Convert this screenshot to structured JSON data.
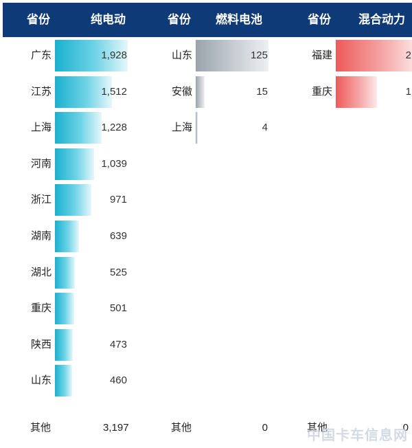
{
  "headers": {
    "prov1": "省份",
    "ev": "纯电动",
    "prov2": "省份",
    "fc": "燃料电池",
    "prov3": "省份",
    "hy": "混合动力"
  },
  "chart_data": [
    {
      "type": "bar",
      "series": [
        {
          "name": "纯电动",
          "categories": [
            "广东",
            "江苏",
            "上海",
            "河南",
            "浙江",
            "湖南",
            "湖北",
            "重庆",
            "陕西",
            "山东"
          ],
          "values": [
            1928,
            1512,
            1228,
            1039,
            971,
            639,
            525,
            501,
            473,
            460
          ],
          "labels": [
            "1,928",
            "1,512",
            "1,228",
            "1,039",
            "971",
            "639",
            "525",
            "501",
            "473",
            "460"
          ]
        }
      ],
      "other": {
        "label": "其他",
        "value": "3,197"
      }
    },
    {
      "type": "bar",
      "series": [
        {
          "name": "燃料电池",
          "categories": [
            "山东",
            "安徽",
            "上海"
          ],
          "values": [
            125,
            15,
            4
          ],
          "labels": [
            "125",
            "15",
            "4"
          ]
        }
      ],
      "other": {
        "label": "其他",
        "value": "0"
      }
    },
    {
      "type": "bar",
      "series": [
        {
          "name": "混合动力",
          "categories": [
            "福建",
            "重庆"
          ],
          "values": [
            2,
            1
          ],
          "labels": [
            "2",
            "1"
          ]
        }
      ],
      "other": {
        "label": "其他",
        "value": "0"
      }
    }
  ],
  "colors": {
    "header": "#0e3a78",
    "ev": "#1ab0cf",
    "fc": "#9aa3ac",
    "hy": "#ee5a5a"
  },
  "watermark": "中国卡车信息网"
}
